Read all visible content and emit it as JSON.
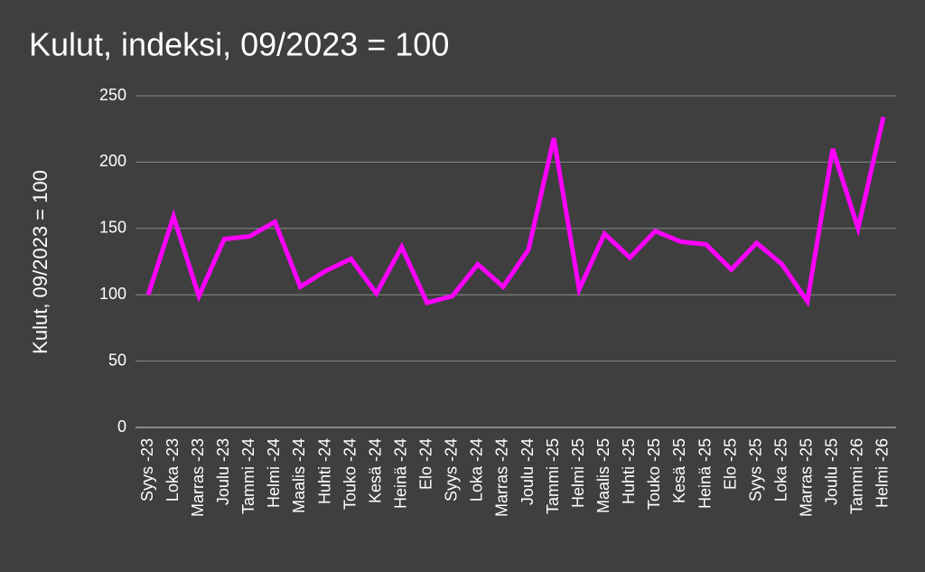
{
  "chart_data": {
    "type": "line",
    "title": "Kulut, indeksi, 09/2023 = 100",
    "y_label": "Kulut, 09/2023 = 100",
    "categories": [
      "Syys -23",
      "Loka -23",
      "Marras -23",
      "Joulu -23",
      "Tammi -24",
      "Helmi -24",
      "Maalis -24",
      "Huhti -24",
      "Touko -24",
      "Kesä -24",
      "Heinä -24",
      "Elo -24",
      "Syys -24",
      "Loka -24",
      "Marras -24",
      "Joulu -24",
      "Tammi -25",
      "Helmi -25",
      "Maalis -25",
      "Huhti -25",
      "Touko -25",
      "Kesä -25",
      "Heinä -25",
      "Elo -25",
      "Syys -25",
      "Loka -25",
      "Marras -25",
      "Joulu -25",
      "Tammi -26",
      "Helmi -26"
    ],
    "values": [
      100,
      159,
      99,
      142,
      144,
      155,
      106,
      118,
      127,
      101,
      136,
      94,
      99,
      123,
      106,
      134,
      218,
      104,
      146,
      128,
      148,
      140,
      138,
      119,
      139,
      123,
      95,
      210,
      150,
      234
    ],
    "color": "#ff00ff",
    "ylim": [
      0,
      250
    ],
    "yticks": [
      0,
      50,
      100,
      150,
      200,
      250
    ],
    "grid": true
  }
}
